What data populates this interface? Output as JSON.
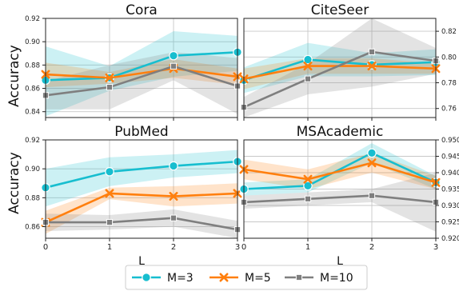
{
  "figure": {
    "ylabel": "Accuracy",
    "xlabel": "L",
    "legend": {
      "placement": "bottom-center",
      "entries": [
        {
          "name": "M=3",
          "marker": "circle",
          "color": "#17becf"
        },
        {
          "name": "M=5",
          "marker": "x",
          "color": "#ff7f0e"
        },
        {
          "name": "M=10",
          "marker": "square",
          "color": "#7f7f7f"
        }
      ]
    }
  },
  "chart_data": [
    {
      "type": "line",
      "title": "Cora",
      "x": [
        0,
        1,
        2,
        3
      ],
      "xticks": [
        "",
        "",
        "",
        ""
      ],
      "ylim": [
        0.835,
        0.92
      ],
      "yticks": [
        "0.84",
        "0.86",
        "0.88",
        "0.90",
        "0.92"
      ],
      "ytick_values": [
        0.84,
        0.86,
        0.88,
        0.9,
        0.92
      ],
      "yaxis_side": "left",
      "grid": true,
      "series": [
        {
          "name": "M=3",
          "values": [
            0.867,
            0.869,
            0.888,
            0.891
          ],
          "band_lower": [
            0.836,
            0.858,
            0.87,
            0.875
          ],
          "band_upper": [
            0.896,
            0.879,
            0.909,
            0.905
          ]
        },
        {
          "name": "M=5",
          "values": [
            0.872,
            0.869,
            0.877,
            0.87
          ],
          "band_lower": [
            0.861,
            0.864,
            0.869,
            0.863
          ],
          "band_upper": [
            0.882,
            0.874,
            0.885,
            0.877
          ]
        },
        {
          "name": "M=10",
          "values": [
            0.854,
            0.861,
            0.879,
            0.862
          ],
          "band_lower": [
            0.842,
            0.842,
            0.867,
            0.838
          ],
          "band_upper": [
            0.866,
            0.88,
            0.891,
            0.886
          ]
        }
      ]
    },
    {
      "type": "line",
      "title": "CiteSeer",
      "x": [
        0,
        1,
        2,
        3
      ],
      "xticks": [
        "",
        "",
        "",
        ""
      ],
      "ylim": [
        0.753,
        0.83
      ],
      "yticks": [
        "0.76",
        "0.78",
        "0.80",
        "0.82"
      ],
      "ytick_values": [
        0.76,
        0.78,
        0.8,
        0.82
      ],
      "yaxis_side": "right",
      "grid": true,
      "series": [
        {
          "name": "M=3",
          "values": [
            0.782,
            0.798,
            0.794,
            0.796
          ],
          "band_lower": [
            0.772,
            0.785,
            0.785,
            0.786
          ],
          "band_upper": [
            0.792,
            0.811,
            0.803,
            0.806
          ]
        },
        {
          "name": "M=5",
          "values": [
            0.783,
            0.793,
            0.793,
            0.791
          ],
          "band_lower": [
            0.775,
            0.787,
            0.787,
            0.787
          ],
          "band_upper": [
            0.791,
            0.799,
            0.799,
            0.795
          ]
        },
        {
          "name": "M=10",
          "values": [
            0.761,
            0.783,
            0.804,
            0.797
          ],
          "band_lower": [
            0.753,
            0.771,
            0.777,
            0.787
          ],
          "band_upper": [
            0.769,
            0.795,
            0.83,
            0.807
          ]
        }
      ]
    },
    {
      "type": "line",
      "title": "PubMed",
      "x": [
        0,
        1,
        2,
        3
      ],
      "xticks": [
        "0",
        "1",
        "2",
        "3"
      ],
      "ylim": [
        0.852,
        0.92
      ],
      "yticks": [
        "0.86",
        "0.88",
        "0.90",
        "0.92"
      ],
      "ytick_values": [
        0.86,
        0.88,
        0.9,
        0.92
      ],
      "yaxis_side": "left",
      "grid": true,
      "series": [
        {
          "name": "M=3",
          "values": [
            0.887,
            0.898,
            0.902,
            0.905
          ],
          "band_lower": [
            0.874,
            0.888,
            0.894,
            0.897
          ],
          "band_upper": [
            0.9,
            0.908,
            0.91,
            0.913
          ]
        },
        {
          "name": "M=5",
          "values": [
            0.863,
            0.883,
            0.881,
            0.883
          ],
          "band_lower": [
            0.855,
            0.879,
            0.874,
            0.876
          ],
          "band_upper": [
            0.871,
            0.887,
            0.888,
            0.89
          ]
        },
        {
          "name": "M=10",
          "values": [
            0.863,
            0.863,
            0.866,
            0.858
          ],
          "band_lower": [
            0.857,
            0.858,
            0.86,
            0.852
          ],
          "band_upper": [
            0.869,
            0.868,
            0.872,
            0.864
          ]
        }
      ]
    },
    {
      "type": "line",
      "title": "MSAcademic",
      "x": [
        0,
        1,
        2,
        3
      ],
      "xticks": [
        "0",
        "1",
        "2",
        "3"
      ],
      "ylim": [
        0.92,
        0.95
      ],
      "yticks": [
        "0.920",
        "0.925",
        "0.930",
        "0.935",
        "0.940",
        "0.945",
        "0.950"
      ],
      "ytick_values": [
        0.92,
        0.925,
        0.93,
        0.935,
        0.94,
        0.945,
        0.95
      ],
      "yaxis_side": "right",
      "grid": true,
      "series": [
        {
          "name": "M=3",
          "values": [
            0.935,
            0.936,
            0.946,
            0.937
          ],
          "band_lower": [
            0.933,
            0.934,
            0.943,
            0.935
          ],
          "band_upper": [
            0.937,
            0.938,
            0.949,
            0.939
          ]
        },
        {
          "name": "M=5",
          "values": [
            0.941,
            0.938,
            0.943,
            0.937
          ],
          "band_lower": [
            0.938,
            0.935,
            0.94,
            0.935
          ],
          "band_upper": [
            0.944,
            0.941,
            0.946,
            0.939
          ]
        },
        {
          "name": "M=10",
          "values": [
            0.931,
            0.932,
            0.933,
            0.931
          ],
          "band_lower": [
            0.929,
            0.93,
            0.931,
            0.922
          ],
          "band_upper": [
            0.933,
            0.934,
            0.935,
            0.94
          ]
        }
      ]
    }
  ]
}
